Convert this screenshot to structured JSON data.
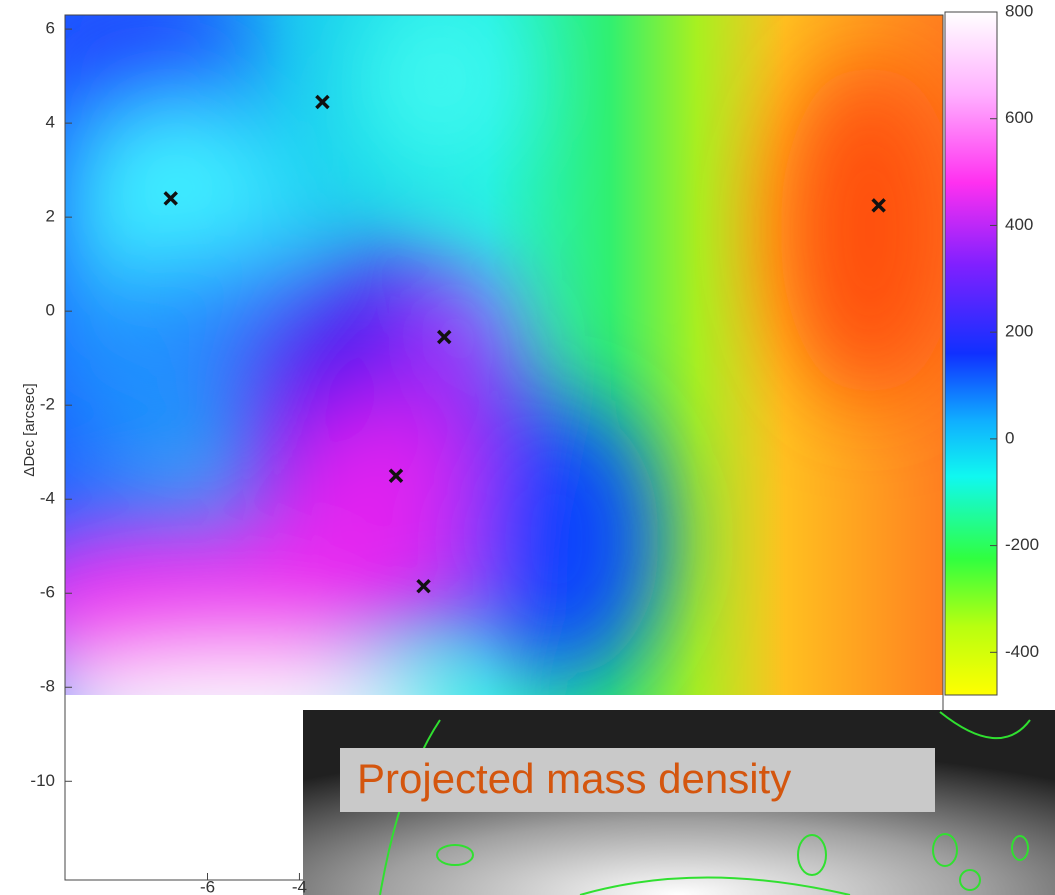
{
  "plot": {
    "y_label": "ΔDec [arcsec]",
    "xlim": [
      -9.1,
      10
    ],
    "ylim": [
      -12.1,
      6.3
    ],
    "xticks": [
      -6,
      -4
    ],
    "yticks": [
      6,
      4,
      2,
      0,
      -2,
      -4,
      -6,
      -8,
      -10
    ],
    "colorbar_lim": [
      -480,
      800
    ],
    "colorbar_ticks": [
      800,
      600,
      400,
      200,
      0,
      -200,
      -400
    ],
    "markers": {
      "x": [
        -6.8,
        -3.5,
        -0.85,
        -1.9,
        -1.3,
        8.6
      ],
      "y": [
        2.4,
        4.45,
        -0.55,
        -3.5,
        -5.85,
        2.25
      ]
    }
  },
  "inset": {
    "caption": "Projected mass density"
  }
}
